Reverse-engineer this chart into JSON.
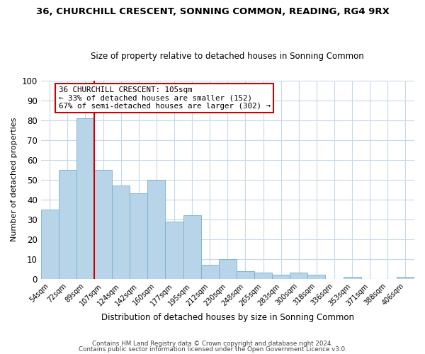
{
  "title": "36, CHURCHILL CRESCENT, SONNING COMMON, READING, RG4 9RX",
  "subtitle": "Size of property relative to detached houses in Sonning Common",
  "xlabel": "Distribution of detached houses by size in Sonning Common",
  "ylabel": "Number of detached properties",
  "bar_labels": [
    "54sqm",
    "72sqm",
    "89sqm",
    "107sqm",
    "124sqm",
    "142sqm",
    "160sqm",
    "177sqm",
    "195sqm",
    "212sqm",
    "230sqm",
    "248sqm",
    "265sqm",
    "283sqm",
    "300sqm",
    "318sqm",
    "336sqm",
    "353sqm",
    "371sqm",
    "388sqm",
    "406sqm"
  ],
  "bar_heights": [
    35,
    55,
    81,
    55,
    47,
    43,
    50,
    29,
    32,
    7,
    10,
    4,
    3,
    2,
    3,
    2,
    0,
    1,
    0,
    0,
    1
  ],
  "bar_color": "#b8d4e8",
  "bar_edge_color": "#7aaed0",
  "ylim": [
    0,
    100
  ],
  "yticks": [
    0,
    10,
    20,
    30,
    40,
    50,
    60,
    70,
    80,
    90,
    100
  ],
  "property_line_color": "#cc0000",
  "annotation_text": "36 CHURCHILL CRESCENT: 105sqm\n← 33% of detached houses are smaller (152)\n67% of semi-detached houses are larger (302) →",
  "annotation_box_color": "#ffffff",
  "annotation_box_edge": "#cc0000",
  "footer1": "Contains HM Land Registry data © Crown copyright and database right 2024.",
  "footer2": "Contains public sector information licensed under the Open Government Licence v3.0.",
  "background_color": "#ffffff",
  "grid_color": "#c8d8e8"
}
